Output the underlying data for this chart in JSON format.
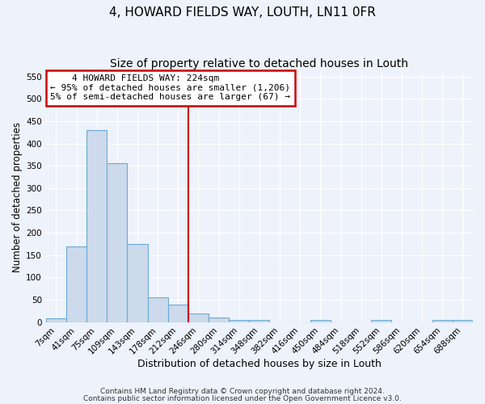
{
  "title1": "4, HOWARD FIELDS WAY, LOUTH, LN11 0FR",
  "title2": "Size of property relative to detached houses in Louth",
  "xlabel": "Distribution of detached houses by size in Louth",
  "ylabel": "Number of detached properties",
  "categories": [
    "7sqm",
    "41sqm",
    "75sqm",
    "109sqm",
    "143sqm",
    "178sqm",
    "212sqm",
    "246sqm",
    "280sqm",
    "314sqm",
    "348sqm",
    "382sqm",
    "416sqm",
    "450sqm",
    "484sqm",
    "518sqm",
    "552sqm",
    "586sqm",
    "620sqm",
    "654sqm",
    "688sqm"
  ],
  "values": [
    8,
    170,
    430,
    355,
    175,
    55,
    40,
    20,
    10,
    5,
    5,
    0,
    0,
    5,
    0,
    0,
    5,
    0,
    0,
    5,
    5
  ],
  "bar_color": "#ccdaeb",
  "bar_edge_color": "#6aaad4",
  "ylim": [
    0,
    560
  ],
  "yticks": [
    0,
    50,
    100,
    150,
    200,
    250,
    300,
    350,
    400,
    450,
    500,
    550
  ],
  "red_line_x": 6.5,
  "ann_line1": "    4 HOWARD FIELDS WAY: 224sqm",
  "ann_line2": "← 95% of detached houses are smaller (1,206)",
  "ann_line3": "5% of semi-detached houses are larger (67) →",
  "annotation_box_color": "#cc0000",
  "footer1": "Contains HM Land Registry data © Crown copyright and database right 2024.",
  "footer2": "Contains public sector information licensed under the Open Government Licence v3.0.",
  "bg_color": "#eef2fb",
  "grid_color": "#ffffff",
  "title1_fontsize": 11,
  "title2_fontsize": 10,
  "xlabel_fontsize": 9,
  "ylabel_fontsize": 8.5,
  "tick_fontsize": 7.5,
  "ann_fontsize": 8,
  "footer_fontsize": 6.5
}
